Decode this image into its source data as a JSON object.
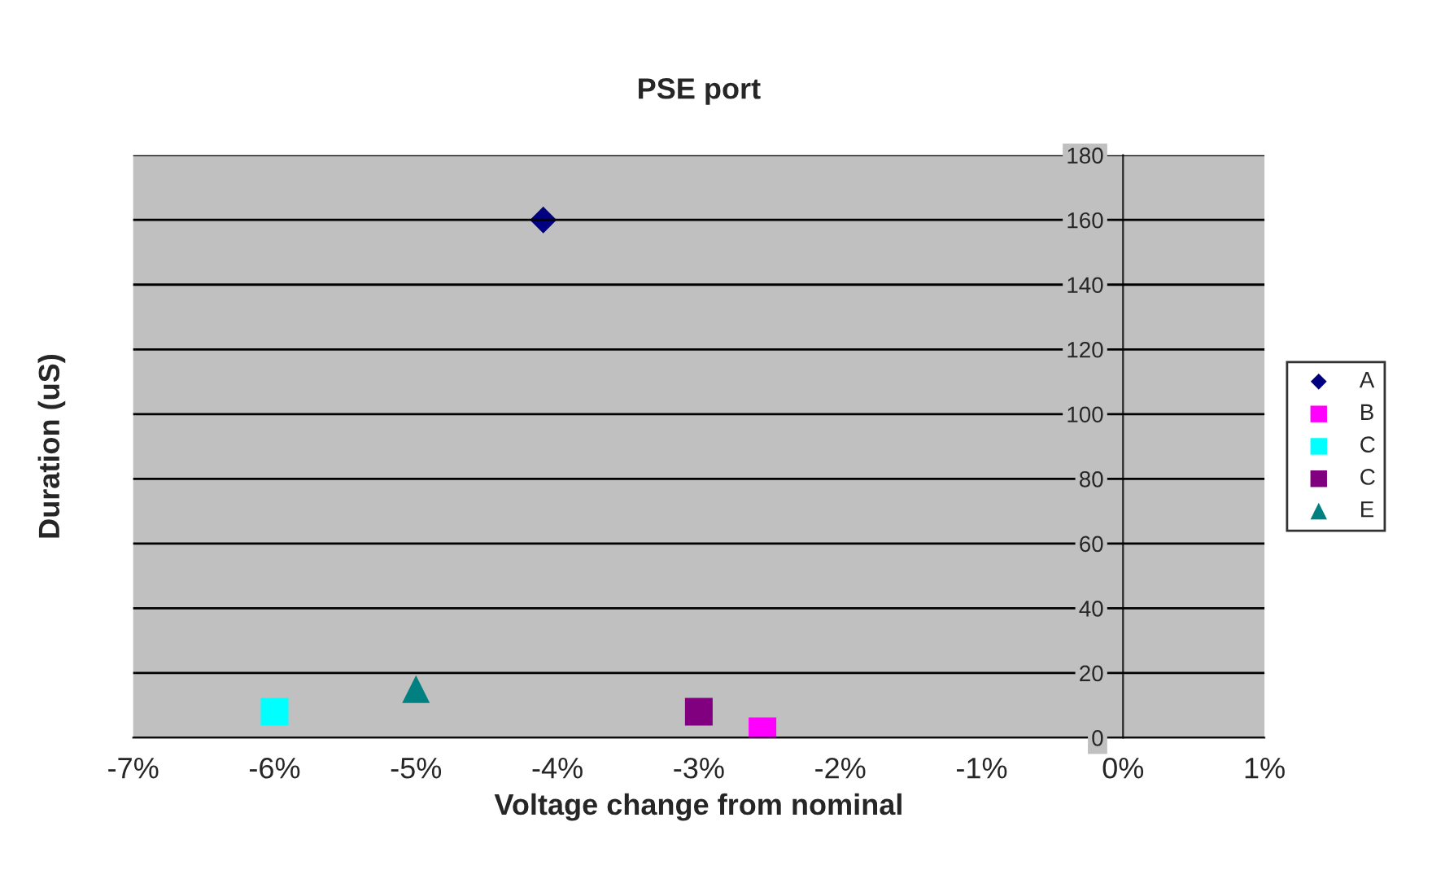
{
  "chart_data": {
    "type": "scatter",
    "title": "PSE port",
    "xlabel": "Voltage change from nominal",
    "ylabel": "Duration (uS)",
    "xlim": [
      -7,
      1
    ],
    "xticks": [
      {
        "value": -7,
        "label": "-7%"
      },
      {
        "value": -6,
        "label": "-6%"
      },
      {
        "value": -5,
        "label": "-5%"
      },
      {
        "value": -4,
        "label": "-4%"
      },
      {
        "value": -3,
        "label": "-3%"
      },
      {
        "value": -2,
        "label": "-2%"
      },
      {
        "value": -1,
        "label": "-1%"
      },
      {
        "value": 0,
        "label": "0%"
      },
      {
        "value": 1,
        "label": "1%"
      }
    ],
    "ylim": [
      0,
      180
    ],
    "yticks": [
      0,
      20,
      40,
      60,
      80,
      100,
      120,
      140,
      160,
      180
    ],
    "grid": "y",
    "legend": "right",
    "series": [
      {
        "name": "A",
        "color": "#000080",
        "marker": "diamond",
        "x": [
          -4.1
        ],
        "values": [
          160
        ]
      },
      {
        "name": "B",
        "color": "#ff00ff",
        "marker": "square",
        "x": [
          -2.55
        ],
        "values": [
          2
        ]
      },
      {
        "name": "C",
        "color": "#00ffff",
        "marker": "square",
        "x": [
          -6.0
        ],
        "values": [
          8
        ]
      },
      {
        "name": "C",
        "color": "#800080",
        "marker": "square",
        "x": [
          -3.0
        ],
        "values": [
          8
        ]
      },
      {
        "name": "E",
        "color": "#008080",
        "marker": "triangle",
        "x": [
          -5.0
        ],
        "values": [
          15
        ]
      }
    ]
  }
}
